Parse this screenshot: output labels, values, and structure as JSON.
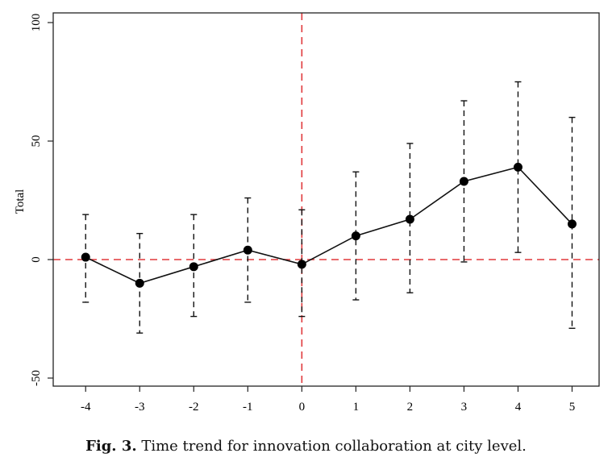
{
  "chart_data": {
    "type": "line",
    "ylabel": "Total",
    "xlabel": "",
    "x": [
      -4,
      -3,
      -2,
      -1,
      0,
      1,
      2,
      3,
      4,
      5
    ],
    "xticks": [
      "-4",
      "-3",
      "-2",
      "-1",
      "0",
      "1",
      "2",
      "3",
      "4",
      "5"
    ],
    "yticks": [
      "-50",
      "0",
      "50",
      "100"
    ],
    "ylim": [
      -50,
      100
    ],
    "xlim": [
      -4.6,
      5.5
    ],
    "grid": false,
    "series": [
      {
        "values": [
          1,
          -10,
          -3,
          4,
          -2,
          10,
          17,
          33,
          39,
          15
        ],
        "ci_lower": [
          -18,
          -31,
          -24,
          -18,
          -24,
          -17,
          -14,
          -1,
          3,
          -29
        ],
        "ci_upper": [
          19,
          11,
          19,
          26,
          21,
          37,
          49,
          67,
          75,
          60
        ]
      }
    ],
    "reference_lines": {
      "horizontal_y": 0,
      "vertical_x": 0,
      "color": "#e0393b",
      "style": "dashed"
    }
  },
  "caption": {
    "label": "Fig. 3.",
    "text": " Time trend for innovation collaboration at city level."
  }
}
